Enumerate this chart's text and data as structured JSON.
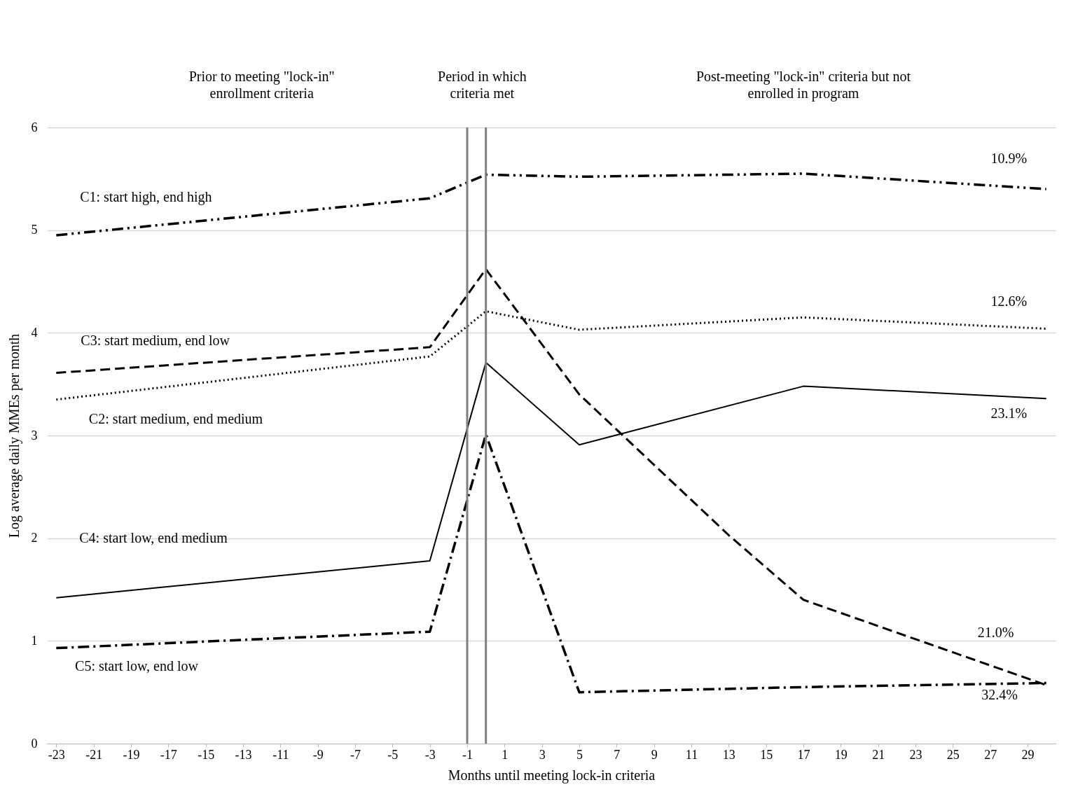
{
  "chart_data": {
    "type": "line",
    "xlabel": "Months until meeting lock-in criteria",
    "ylabel": "Log average daily MMEs per month",
    "xlim": [
      -23.5,
      30.5
    ],
    "xticks": [
      -23,
      -21,
      -19,
      -17,
      -15,
      -13,
      -11,
      -9,
      -7,
      -5,
      -3,
      -1,
      1,
      3,
      5,
      7,
      9,
      11,
      13,
      15,
      17,
      19,
      21,
      23,
      25,
      27,
      29
    ],
    "ylim": [
      0,
      6
    ],
    "yticks": [
      0,
      1,
      2,
      3,
      4,
      5,
      6
    ],
    "grid": "y",
    "series": [
      {
        "color": "#000000",
        "line_style": "dashdotdot",
        "x": [
          -23,
          -3,
          0,
          5,
          17,
          30
        ],
        "values": [
          4.95,
          5.31,
          5.54,
          5.52,
          5.55,
          5.4
        ]
      },
      {
        "color": "#000000",
        "line_style": "dotted",
        "x": [
          -23,
          -3,
          0,
          5,
          17,
          30
        ],
        "values": [
          3.35,
          3.77,
          4.21,
          4.03,
          4.15,
          4.04
        ]
      },
      {
        "color": "#000000",
        "line_style": "dashed",
        "x": [
          -23,
          -3,
          0,
          5,
          13,
          17,
          30
        ],
        "values": [
          3.61,
          3.86,
          4.62,
          3.4,
          2.03,
          1.4,
          0.57
        ]
      },
      {
        "color": "#000000",
        "line_style": "solid",
        "x": [
          -23,
          -3,
          0,
          5,
          17,
          30
        ],
        "values": [
          1.42,
          1.78,
          3.71,
          2.91,
          3.48,
          3.36
        ]
      },
      {
        "color": "#000000",
        "line_style": "dashdot",
        "x": [
          -23,
          -3,
          0,
          5,
          17,
          30
        ],
        "values": [
          0.93,
          1.09,
          3.01,
          0.5,
          0.55,
          0.59
        ]
      }
    ],
    "ref_lines": [
      {
        "axis": "x",
        "value": -1,
        "color": "#808080"
      },
      {
        "axis": "x",
        "value": 0,
        "color": "#808080"
      }
    ],
    "annotations": [
      "Prior to meeting \"lock-in\"\nenrollment criteria",
      "Period in which\ncriteria met",
      "Post-meeting \"lock-in\" criteria but not\nenrolled in program",
      "C1: start high, end high",
      "C3: start medium, end low",
      "C2: start medium, end medium",
      "C4: start low, end medium",
      "C5: start low, end low",
      "10.9%",
      "12.6%",
      "23.1%",
      "21.0%",
      "32.4%"
    ]
  }
}
